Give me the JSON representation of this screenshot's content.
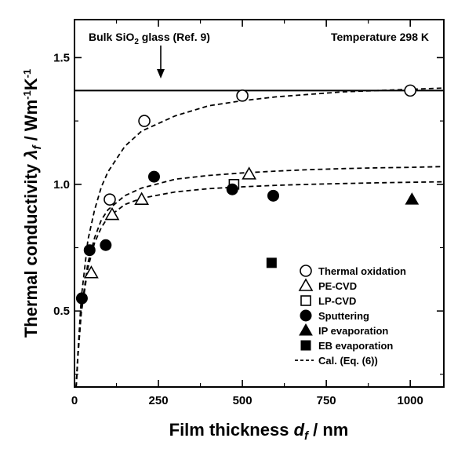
{
  "chart_data": {
    "type": "scatter",
    "xlabel_main": "Film thickness ",
    "xlabel_var": "d",
    "xlabel_sub": "f",
    "xlabel_unit": " / nm",
    "ylabel_main": "Thermal conductivity ",
    "ylabel_var": "λ",
    "ylabel_sub": "f",
    "ylabel_unit_a": " / Wm",
    "ylabel_exp_a": "-1",
    "ylabel_unit_b": "K",
    "ylabel_exp_b": "-1",
    "xlim": [
      0,
      1100
    ],
    "ylim": [
      0.2,
      1.65
    ],
    "xticks": [
      0,
      250,
      500,
      750,
      1000
    ],
    "xtick_labels": [
      "0",
      "250",
      "500",
      "750",
      "1000"
    ],
    "yticks": [
      0.5,
      1.0,
      1.5
    ],
    "ytick_labels": [
      "0.5",
      "1.0",
      "1.5"
    ],
    "grid": false,
    "legend_position": "lower-right",
    "annotations": {
      "bulk_text_a": "Bulk SiO",
      "bulk_text_sub": "2",
      "bulk_text_b": " glass (Ref. 9)",
      "temperature": "Temperature 298 K",
      "bulk_value": 1.37
    },
    "series": [
      {
        "name": "Thermal oxidation",
        "marker": "circle-open",
        "x": [
          105,
          208,
          500,
          1000
        ],
        "y": [
          0.94,
          1.25,
          1.35,
          1.37
        ]
      },
      {
        "name": "PE-CVD",
        "marker": "triangle-open",
        "x": [
          50,
          112,
          200,
          520
        ],
        "y": [
          0.65,
          0.88,
          0.94,
          1.04
        ]
      },
      {
        "name": "LP-CVD",
        "marker": "square-open",
        "x": [
          475
        ],
        "y": [
          1.0
        ]
      },
      {
        "name": "Sputtering",
        "marker": "circle-filled",
        "x": [
          22,
          45,
          93,
          237,
          470,
          592
        ],
        "y": [
          0.55,
          0.74,
          0.76,
          1.03,
          0.98,
          0.955
        ]
      },
      {
        "name": "IP evaporation",
        "marker": "triangle-filled",
        "x": [
          1005
        ],
        "y": [
          0.94
        ]
      },
      {
        "name": "EB evaporation",
        "marker": "square-filled",
        "x": [
          587
        ],
        "y": [
          0.69
        ]
      },
      {
        "name": "Cal. (Eq. (6))",
        "marker": "dashed-line"
      }
    ],
    "curves": [
      {
        "x": [
          5,
          10,
          20,
          40,
          60,
          80,
          100,
          150,
          200,
          300,
          400,
          500,
          600,
          700,
          800,
          900,
          1000,
          1100
        ],
        "y": [
          0.2,
          0.33,
          0.55,
          0.78,
          0.9,
          0.99,
          1.05,
          1.15,
          1.21,
          1.27,
          1.31,
          1.33,
          1.345,
          1.355,
          1.365,
          1.37,
          1.375,
          1.38
        ]
      },
      {
        "x": [
          5,
          10,
          20,
          40,
          60,
          80,
          100,
          150,
          200,
          300,
          400,
          500,
          600,
          700,
          800,
          900,
          1000,
          1100
        ],
        "y": [
          0.2,
          0.32,
          0.5,
          0.69,
          0.79,
          0.86,
          0.9,
          0.955,
          0.985,
          1.02,
          1.035,
          1.045,
          1.052,
          1.058,
          1.062,
          1.065,
          1.067,
          1.07
        ]
      },
      {
        "x": [
          5,
          10,
          20,
          40,
          60,
          80,
          100,
          150,
          200,
          300,
          400,
          500,
          600,
          700,
          800,
          900,
          1000,
          1100
        ],
        "y": [
          0.2,
          0.32,
          0.49,
          0.67,
          0.77,
          0.83,
          0.87,
          0.92,
          0.945,
          0.97,
          0.983,
          0.99,
          0.996,
          1.0,
          1.003,
          1.006,
          1.008,
          1.01
        ]
      }
    ]
  }
}
